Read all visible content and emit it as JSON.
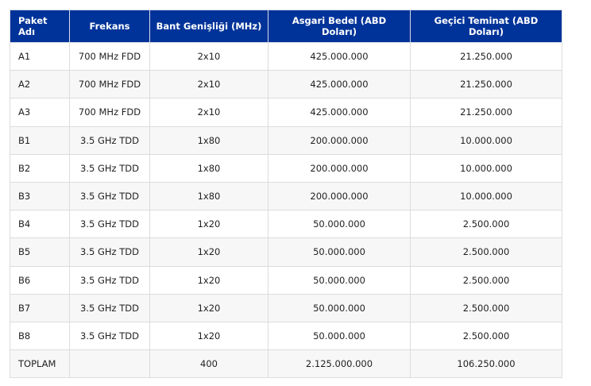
{
  "table": {
    "headers": [
      "Paket Adı",
      "Frekans",
      "Bant Genişliği (MHz)",
      "Asgari Bedel (ABD Doları)",
      "Geçici Teminat (ABD Doları)"
    ],
    "rows": [
      [
        "A1",
        "700 MHz FDD",
        "2x10",
        "425.000.000",
        "21.250.000"
      ],
      [
        "A2",
        "700 MHz FDD",
        "2x10",
        "425.000.000",
        "21.250.000"
      ],
      [
        "A3",
        "700 MHz FDD",
        "2x10",
        "425.000.000",
        "21.250.000"
      ],
      [
        "B1",
        "3.5 GHz TDD",
        "1x80",
        "200.000.000",
        "10.000.000"
      ],
      [
        "B2",
        "3.5 GHz TDD",
        "1x80",
        "200.000.000",
        "10.000.000"
      ],
      [
        "B3",
        "3.5 GHz TDD",
        "1x80",
        "200.000.000",
        "10.000.000"
      ],
      [
        "B4",
        "3.5 GHz TDD",
        "1x20",
        "50.000.000",
        "2.500.000"
      ],
      [
        "B5",
        "3.5 GHz TDD",
        "1x20",
        "50.000.000",
        "2.500.000"
      ],
      [
        "B6",
        "3.5 GHz TDD",
        "1x20",
        "50.000.000",
        "2.500.000"
      ],
      [
        "B7",
        "3.5 GHz TDD",
        "1x20",
        "50.000.000",
        "2.500.000"
      ],
      [
        "B8",
        "3.5 GHz TDD",
        "1x20",
        "50.000.000",
        "2.500.000"
      ],
      [
        "TOPLAM",
        "",
        "400",
        "2.125.000.000",
        "106.250.000"
      ]
    ]
  },
  "colors": {
    "header_bg": "#003399",
    "header_text": "#ffffff",
    "alt_row": "#f7f7f7"
  }
}
